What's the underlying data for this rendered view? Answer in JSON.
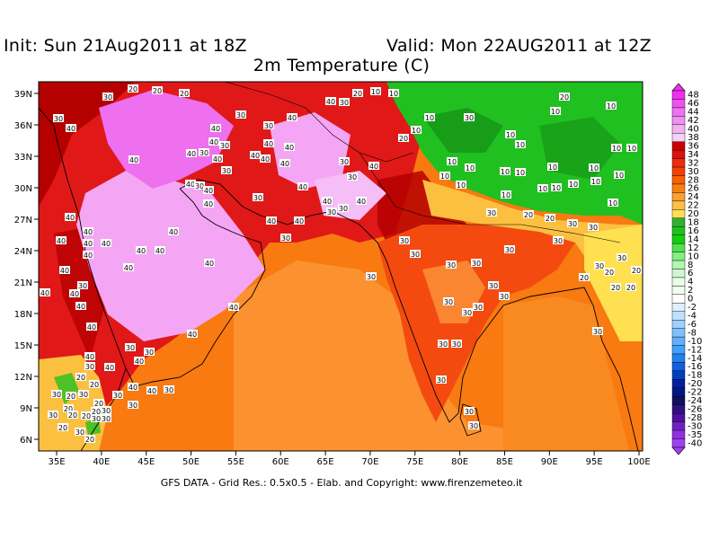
{
  "header": {
    "init": "Init: Sun 21Aug2011 at 18Z",
    "valid": "Valid: Mon 22AUG2011 at 12Z",
    "subtitle": "2m Temperature (C)"
  },
  "footer": "GFS DATA - Grid Res.: 0.5x0.5 - Elab. and Copyright: www.firenzemeteo.it",
  "axes": {
    "x_ticks": [
      "35E",
      "40E",
      "45E",
      "50E",
      "55E",
      "60E",
      "65E",
      "70E",
      "75E",
      "80E",
      "85E",
      "90E",
      "95E",
      "100E"
    ],
    "y_ticks": [
      "39N",
      "36N",
      "33N",
      "30N",
      "27N",
      "24N",
      "21N",
      "18N",
      "15N",
      "12N",
      "9N",
      "6N"
    ]
  },
  "colorbar": {
    "levels": [
      "48",
      "46",
      "44",
      "42",
      "40",
      "38",
      "36",
      "34",
      "32",
      "30",
      "28",
      "26",
      "24",
      "22",
      "20",
      "18",
      "16",
      "14",
      "12",
      "10",
      "8",
      "6",
      "4",
      "2",
      "0",
      "-2",
      "-4",
      "-6",
      "-8",
      "-10",
      "-12",
      "-14",
      "-16",
      "-18",
      "-20",
      "-22",
      "-24",
      "-26",
      "-28",
      "-30",
      "-35",
      "-40"
    ],
    "colors": [
      "#ee30ee",
      "#f050f0",
      "#f070f0",
      "#f090f0",
      "#f4b0f4",
      "#f8d0f8",
      "#cc0000",
      "#dd1010",
      "#ee2a10",
      "#f54000",
      "#f86000",
      "#f98010",
      "#fca030",
      "#fdc040",
      "#fee050",
      "#30b030",
      "#20c020",
      "#10d010",
      "#50e050",
      "#80f080",
      "#b0f8b0",
      "#d0f8d0",
      "#e8fce8",
      "#f0fff0",
      "#ffffff",
      "#e0f0ff",
      "#c0e0ff",
      "#a0d0ff",
      "#80c0ff",
      "#60b0ff",
      "#40a0ff",
      "#2080f0",
      "#1060e0",
      "#0040c0",
      "#0020a0",
      "#001880",
      "#101060",
      "#301080",
      "#5010a0",
      "#7020c0",
      "#9030e0",
      "#a040f0"
    ]
  },
  "map_colors": {
    "hot_pink": "#f4a6f4",
    "light_pink": "#f6bef6",
    "dark_red": "#b50000",
    "red": "#e01818",
    "orange_red": "#f44a10",
    "orange": "#f87a10",
    "light_orange": "#fca040",
    "yellow_orange": "#fcc040",
    "yellow": "#fee050",
    "green": "#20c020",
    "dark_green": "#108010"
  },
  "contour_labels": [
    {
      "t": "30",
      "x": 120,
      "y": 108
    },
    {
      "t": "20",
      "x": 148,
      "y": 99
    },
    {
      "t": "20",
      "x": 175,
      "y": 101
    },
    {
      "t": "20",
      "x": 205,
      "y": 104
    },
    {
      "t": "30",
      "x": 65,
      "y": 132
    },
    {
      "t": "30",
      "x": 268,
      "y": 128
    },
    {
      "t": "40",
      "x": 325,
      "y": 131
    },
    {
      "t": "40",
      "x": 368,
      "y": 113
    },
    {
      "t": "30",
      "x": 383,
      "y": 114
    },
    {
      "t": "20",
      "x": 398,
      "y": 104
    },
    {
      "t": "10",
      "x": 418,
      "y": 102
    },
    {
      "t": "10",
      "x": 438,
      "y": 104
    },
    {
      "t": "40",
      "x": 79,
      "y": 143
    },
    {
      "t": "40",
      "x": 240,
      "y": 143
    },
    {
      "t": "30",
      "x": 299,
      "y": 140
    },
    {
      "t": "10",
      "x": 478,
      "y": 131
    },
    {
      "t": "30",
      "x": 522,
      "y": 131
    },
    {
      "t": "20",
      "x": 628,
      "y": 108
    },
    {
      "t": "10",
      "x": 618,
      "y": 124
    },
    {
      "t": "10",
      "x": 680,
      "y": 118
    },
    {
      "t": "40",
      "x": 238,
      "y": 158
    },
    {
      "t": "30",
      "x": 250,
      "y": 162
    },
    {
      "t": "40",
      "x": 213,
      "y": 171
    },
    {
      "t": "30",
      "x": 227,
      "y": 170
    },
    {
      "t": "40",
      "x": 299,
      "y": 160
    },
    {
      "t": "40",
      "x": 322,
      "y": 164
    },
    {
      "t": "20",
      "x": 449,
      "y": 154
    },
    {
      "t": "10",
      "x": 463,
      "y": 145
    },
    {
      "t": "40",
      "x": 149,
      "y": 178
    },
    {
      "t": "40",
      "x": 242,
      "y": 177
    },
    {
      "t": "40",
      "x": 284,
      "y": 173
    },
    {
      "t": "40",
      "x": 295,
      "y": 177
    },
    {
      "t": "40",
      "x": 317,
      "y": 182
    },
    {
      "t": "30",
      "x": 383,
      "y": 180
    },
    {
      "t": "40",
      "x": 416,
      "y": 185
    },
    {
      "t": "10",
      "x": 568,
      "y": 150
    },
    {
      "t": "10",
      "x": 579,
      "y": 161
    },
    {
      "t": "10",
      "x": 686,
      "y": 165
    },
    {
      "t": "10",
      "x": 703,
      "y": 165
    },
    {
      "t": "10",
      "x": 503,
      "y": 180
    },
    {
      "t": "10",
      "x": 523,
      "y": 187
    },
    {
      "t": "10",
      "x": 495,
      "y": 196
    },
    {
      "t": "10",
      "x": 562,
      "y": 191
    },
    {
      "t": "10",
      "x": 579,
      "y": 192
    },
    {
      "t": "10",
      "x": 615,
      "y": 186
    },
    {
      "t": "10",
      "x": 661,
      "y": 187
    },
    {
      "t": "10",
      "x": 689,
      "y": 195
    },
    {
      "t": "30",
      "x": 252,
      "y": 190
    },
    {
      "t": "40",
      "x": 212,
      "y": 205
    },
    {
      "t": "30",
      "x": 222,
      "y": 207
    },
    {
      "t": "40",
      "x": 232,
      "y": 212
    },
    {
      "t": "30",
      "x": 287,
      "y": 220
    },
    {
      "t": "40",
      "x": 337,
      "y": 208
    },
    {
      "t": "30",
      "x": 392,
      "y": 197
    },
    {
      "t": "10",
      "x": 513,
      "y": 206
    },
    {
      "t": "10",
      "x": 638,
      "y": 205
    },
    {
      "t": "10",
      "x": 663,
      "y": 202
    },
    {
      "t": "10",
      "x": 619,
      "y": 209
    },
    {
      "t": "10",
      "x": 604,
      "y": 210
    },
    {
      "t": "10",
      "x": 563,
      "y": 217
    },
    {
      "t": "40",
      "x": 232,
      "y": 227
    },
    {
      "t": "40",
      "x": 364,
      "y": 224
    },
    {
      "t": "40",
      "x": 402,
      "y": 224
    },
    {
      "t": "30",
      "x": 369,
      "y": 236
    },
    {
      "t": "30",
      "x": 382,
      "y": 232
    },
    {
      "t": "10",
      "x": 682,
      "y": 226
    },
    {
      "t": "40",
      "x": 302,
      "y": 246
    },
    {
      "t": "40",
      "x": 333,
      "y": 246
    },
    {
      "t": "30",
      "x": 547,
      "y": 237
    },
    {
      "t": "20",
      "x": 588,
      "y": 239
    },
    {
      "t": "20",
      "x": 612,
      "y": 243
    },
    {
      "t": "30",
      "x": 637,
      "y": 249
    },
    {
      "t": "40",
      "x": 78,
      "y": 242
    },
    {
      "t": "40",
      "x": 98,
      "y": 258
    },
    {
      "t": "40",
      "x": 193,
      "y": 258
    },
    {
      "t": "30",
      "x": 318,
      "y": 265
    },
    {
      "t": "30",
      "x": 450,
      "y": 268
    },
    {
      "t": "30",
      "x": 660,
      "y": 253
    },
    {
      "t": "40",
      "x": 68,
      "y": 268
    },
    {
      "t": "40",
      "x": 98,
      "y": 271
    },
    {
      "t": "40",
      "x": 118,
      "y": 271
    },
    {
      "t": "40",
      "x": 157,
      "y": 279
    },
    {
      "t": "40",
      "x": 178,
      "y": 279
    },
    {
      "t": "30",
      "x": 462,
      "y": 283
    },
    {
      "t": "30",
      "x": 567,
      "y": 278
    },
    {
      "t": "30",
      "x": 621,
      "y": 268
    },
    {
      "t": "30",
      "x": 692,
      "y": 287
    },
    {
      "t": "40",
      "x": 98,
      "y": 284
    },
    {
      "t": "40",
      "x": 233,
      "y": 293
    },
    {
      "t": "30",
      "x": 502,
      "y": 295
    },
    {
      "t": "30",
      "x": 530,
      "y": 293
    },
    {
      "t": "40",
      "x": 72,
      "y": 301
    },
    {
      "t": "40",
      "x": 143,
      "y": 298
    },
    {
      "t": "30",
      "x": 413,
      "y": 308
    },
    {
      "t": "30",
      "x": 667,
      "y": 296
    },
    {
      "t": "20",
      "x": 678,
      "y": 303
    },
    {
      "t": "20",
      "x": 650,
      "y": 309
    },
    {
      "t": "20",
      "x": 708,
      "y": 301
    },
    {
      "t": "30",
      "x": 92,
      "y": 318
    },
    {
      "t": "30",
      "x": 549,
      "y": 318
    },
    {
      "t": "20",
      "x": 685,
      "y": 320
    },
    {
      "t": "20",
      "x": 702,
      "y": 320
    },
    {
      "t": "40",
      "x": 50,
      "y": 326
    },
    {
      "t": "40",
      "x": 83,
      "y": 327
    },
    {
      "t": "30",
      "x": 561,
      "y": 330
    },
    {
      "t": "30",
      "x": 499,
      "y": 336
    },
    {
      "t": "40",
      "x": 90,
      "y": 341
    },
    {
      "t": "40",
      "x": 260,
      "y": 342
    },
    {
      "t": "30",
      "x": 532,
      "y": 342
    },
    {
      "t": "30",
      "x": 520,
      "y": 348
    },
    {
      "t": "40",
      "x": 102,
      "y": 364
    },
    {
      "t": "30",
      "x": 665,
      "y": 369
    },
    {
      "t": "40",
      "x": 214,
      "y": 372
    },
    {
      "t": "30",
      "x": 493,
      "y": 383
    },
    {
      "t": "30",
      "x": 508,
      "y": 383
    },
    {
      "t": "30",
      "x": 145,
      "y": 387
    },
    {
      "t": "30",
      "x": 166,
      "y": 392
    },
    {
      "t": "40",
      "x": 100,
      "y": 397
    },
    {
      "t": "40",
      "x": 155,
      "y": 402
    },
    {
      "t": "30",
      "x": 100,
      "y": 408
    },
    {
      "t": "40",
      "x": 122,
      "y": 409
    },
    {
      "t": "20",
      "x": 90,
      "y": 420
    },
    {
      "t": "20",
      "x": 105,
      "y": 428
    },
    {
      "t": "30",
      "x": 491,
      "y": 423
    },
    {
      "t": "40",
      "x": 169,
      "y": 435
    },
    {
      "t": "40",
      "x": 148,
      "y": 431
    },
    {
      "t": "30",
      "x": 188,
      "y": 434
    },
    {
      "t": "30",
      "x": 63,
      "y": 439
    },
    {
      "t": "20",
      "x": 79,
      "y": 441
    },
    {
      "t": "30",
      "x": 93,
      "y": 439
    },
    {
      "t": "30",
      "x": 131,
      "y": 440
    },
    {
      "t": "20",
      "x": 110,
      "y": 449
    },
    {
      "t": "20",
      "x": 76,
      "y": 455
    },
    {
      "t": "20",
      "x": 107,
      "y": 458
    },
    {
      "t": "30",
      "x": 118,
      "y": 457
    },
    {
      "t": "30",
      "x": 148,
      "y": 451
    },
    {
      "t": "30",
      "x": 59,
      "y": 462
    },
    {
      "t": "20",
      "x": 96,
      "y": 463
    },
    {
      "t": "30",
      "x": 107,
      "y": 466
    },
    {
      "t": "30",
      "x": 118,
      "y": 466
    },
    {
      "t": "20",
      "x": 81,
      "y": 462
    },
    {
      "t": "30",
      "x": 522,
      "y": 458
    },
    {
      "t": "20",
      "x": 70,
      "y": 476
    },
    {
      "t": "30",
      "x": 89,
      "y": 481
    },
    {
      "t": "20",
      "x": 100,
      "y": 489
    },
    {
      "t": "30",
      "x": 527,
      "y": 474
    }
  ]
}
